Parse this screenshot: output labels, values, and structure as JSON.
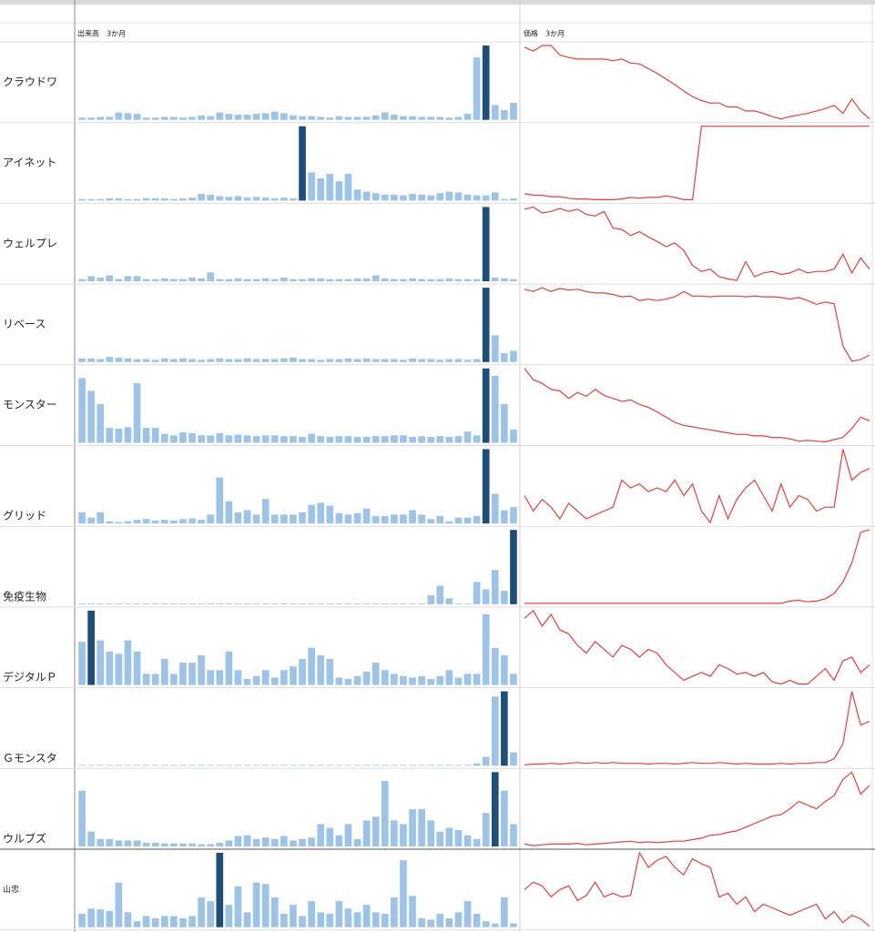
{
  "headers": {
    "volume": "出来高　3か月",
    "price": "価格　3か月"
  },
  "bar_color": "#9dc3e6",
  "highlight_color": "#1f4e79",
  "line_color": "#f23c3c",
  "rows": [
    {
      "name": "クラウドワ",
      "highlight": 44,
      "volume": [
        3,
        3,
        4,
        4,
        10,
        9,
        8,
        3,
        3,
        4,
        4,
        3,
        4,
        6,
        5,
        10,
        8,
        7,
        7,
        8,
        9,
        11,
        9,
        6,
        5,
        5,
        4,
        3,
        5,
        4,
        4,
        4,
        6,
        10,
        7,
        5,
        5,
        4,
        4,
        4,
        3,
        4,
        8,
        84,
        100,
        20,
        13,
        23
      ],
      "price": [
        95,
        90,
        97,
        97,
        85,
        82,
        80,
        80,
        80,
        80,
        78,
        80,
        75,
        74,
        68,
        62,
        55,
        48,
        40,
        33,
        28,
        25,
        25,
        20,
        20,
        15,
        15,
        12,
        8,
        5,
        8,
        10,
        12,
        15,
        18,
        22,
        12,
        30,
        15,
        5
      ]
    },
    {
      "name": "アイネット",
      "highlight": 24,
      "volume": [
        2,
        2,
        2,
        3,
        3,
        2,
        2,
        3,
        3,
        3,
        2,
        3,
        4,
        9,
        8,
        6,
        5,
        6,
        4,
        5,
        4,
        3,
        4,
        3,
        100,
        38,
        30,
        36,
        26,
        36,
        15,
        12,
        10,
        8,
        8,
        7,
        9,
        8,
        7,
        10,
        12,
        11,
        8,
        7,
        7,
        11,
        2,
        3
      ],
      "price": [
        10,
        8,
        8,
        6,
        6,
        4,
        3,
        3,
        2,
        2,
        2,
        3,
        5,
        4,
        5,
        5,
        7,
        5,
        2,
        2,
        100,
        100,
        100,
        100,
        100,
        100,
        100,
        100,
        100,
        100,
        100,
        100,
        100,
        100,
        100,
        100,
        100,
        100,
        100,
        100
      ]
    },
    {
      "name": "ウェルプレ",
      "highlight": 44,
      "volume": [
        3,
        7,
        5,
        8,
        3,
        7,
        7,
        3,
        3,
        4,
        3,
        3,
        5,
        4,
        12,
        3,
        3,
        4,
        3,
        3,
        4,
        3,
        5,
        3,
        3,
        4,
        4,
        3,
        3,
        3,
        4,
        4,
        8,
        4,
        3,
        3,
        4,
        3,
        3,
        3,
        4,
        3,
        3,
        3,
        100,
        5,
        4,
        3
      ],
      "price": [
        95,
        98,
        90,
        92,
        96,
        92,
        95,
        88,
        86,
        92,
        70,
        68,
        60,
        65,
        58,
        52,
        45,
        50,
        40,
        20,
        12,
        15,
        5,
        2,
        0,
        25,
        5,
        10,
        12,
        8,
        10,
        15,
        10,
        12,
        12,
        15,
        35,
        10,
        30,
        15
      ]
    },
    {
      "name": "リベース",
      "highlight": 44,
      "volume": [
        5,
        5,
        4,
        7,
        6,
        5,
        4,
        4,
        3,
        5,
        4,
        5,
        4,
        3,
        4,
        5,
        4,
        4,
        5,
        4,
        4,
        4,
        5,
        6,
        4,
        4,
        3,
        4,
        4,
        5,
        4,
        5,
        4,
        4,
        4,
        3,
        5,
        4,
        4,
        3,
        4,
        4,
        3,
        4,
        100,
        36,
        12,
        15
      ],
      "price": [
        95,
        92,
        97,
        92,
        96,
        94,
        95,
        92,
        90,
        90,
        88,
        85,
        86,
        80,
        82,
        80,
        82,
        85,
        92,
        86,
        86,
        85,
        86,
        86,
        86,
        85,
        86,
        85,
        85,
        84,
        82,
        84,
        80,
        75,
        78,
        76,
        20,
        0,
        2,
        8
      ]
    },
    {
      "name": "モンスター",
      "highlight": 44,
      "volume": [
        87,
        70,
        52,
        20,
        19,
        21,
        80,
        20,
        20,
        12,
        10,
        14,
        13,
        10,
        10,
        13,
        10,
        11,
        10,
        9,
        10,
        10,
        9,
        9,
        8,
        12,
        9,
        8,
        9,
        9,
        8,
        8,
        9,
        9,
        10,
        10,
        8,
        9,
        8,
        9,
        8,
        9,
        15,
        10,
        100,
        90,
        52,
        18
      ],
      "price": [
        100,
        85,
        80,
        72,
        70,
        60,
        68,
        63,
        72,
        64,
        60,
        56,
        58,
        52,
        48,
        42,
        35,
        28,
        24,
        22,
        20,
        18,
        16,
        14,
        12,
        12,
        10,
        10,
        8,
        8,
        6,
        3,
        4,
        3,
        2,
        5,
        8,
        20,
        35,
        30
      ]
    },
    {
      "name": "グリッド",
      "highlight": 44,
      "volume": [
        15,
        8,
        15,
        3,
        2,
        3,
        5,
        6,
        4,
        5,
        4,
        6,
        7,
        5,
        12,
        62,
        30,
        15,
        18,
        12,
        33,
        12,
        12,
        12,
        15,
        25,
        28,
        24,
        14,
        12,
        14,
        20,
        10,
        10,
        12,
        12,
        18,
        12,
        6,
        10,
        3,
        8,
        8,
        10,
        100,
        40,
        18,
        22
      ],
      "price": [
        40,
        20,
        35,
        25,
        10,
        30,
        20,
        10,
        15,
        20,
        25,
        60,
        50,
        55,
        45,
        50,
        45,
        60,
        40,
        55,
        20,
        5,
        40,
        10,
        35,
        50,
        60,
        40,
        20,
        55,
        25,
        40,
        35,
        20,
        25,
        25,
        100,
        60,
        70,
        75
      ]
    },
    {
      "name": "免疫生物",
      "highlight": 47,
      "volume": [
        1,
        1,
        1,
        1,
        1,
        1,
        1,
        1,
        1,
        1,
        1,
        1,
        1,
        1,
        1,
        1,
        1,
        1,
        1,
        1,
        1,
        1,
        1,
        1,
        1,
        1,
        1,
        1,
        1,
        1,
        1,
        1,
        1,
        1,
        1,
        1,
        1,
        1,
        12,
        25,
        8,
        1,
        1,
        30,
        20,
        46,
        18,
        100
      ],
      "price": [
        2,
        2,
        2,
        2,
        2,
        2,
        2,
        2,
        2,
        2,
        2,
        2,
        2,
        2,
        2,
        2,
        2,
        2,
        2,
        2,
        2,
        2,
        2,
        2,
        2,
        2,
        2,
        2,
        2,
        2,
        5,
        6,
        4,
        5,
        8,
        15,
        30,
        55,
        95,
        98
      ]
    },
    {
      "name": "デジタルＰ",
      "highlight": 1,
      "volume": [
        58,
        100,
        60,
        45,
        42,
        60,
        45,
        15,
        15,
        35,
        15,
        30,
        30,
        40,
        20,
        20,
        45,
        20,
        8,
        12,
        20,
        10,
        20,
        25,
        35,
        50,
        40,
        35,
        10,
        8,
        12,
        18,
        30,
        20,
        15,
        12,
        10,
        12,
        8,
        12,
        20,
        10,
        15,
        15,
        95,
        50,
        40,
        15
      ],
      "price": [
        90,
        100,
        80,
        95,
        75,
        70,
        55,
        45,
        60,
        50,
        40,
        55,
        50,
        40,
        50,
        45,
        30,
        20,
        10,
        15,
        20,
        15,
        30,
        25,
        18,
        20,
        15,
        20,
        8,
        5,
        10,
        5,
        5,
        15,
        25,
        10,
        35,
        40,
        20,
        30
      ]
    },
    {
      "name": "Ｇモンスタ",
      "highlight": 46,
      "volume": [
        1,
        1,
        1,
        1,
        1,
        1,
        1,
        1,
        1,
        1,
        1,
        1,
        1,
        1,
        1,
        1,
        1,
        1,
        1,
        1,
        1,
        1,
        1,
        1,
        1,
        1,
        1,
        1,
        1,
        1,
        1,
        1,
        1,
        1,
        1,
        1,
        1,
        1,
        1,
        1,
        1,
        1,
        1,
        3,
        12,
        93,
        100,
        18
      ],
      "price": [
        2,
        3,
        3,
        4,
        3,
        4,
        5,
        4,
        5,
        4,
        5,
        4,
        4,
        4,
        3,
        4,
        4,
        3,
        4,
        5,
        4,
        4,
        5,
        4,
        3,
        4,
        3,
        3,
        3,
        4,
        3,
        4,
        4,
        5,
        5,
        10,
        30,
        100,
        55,
        60
      ]
    },
    {
      "name": "ウルブズ",
      "highlight": 45,
      "volume": [
        75,
        20,
        10,
        10,
        8,
        8,
        8,
        5,
        5,
        4,
        4,
        4,
        4,
        3,
        3,
        5,
        8,
        14,
        15,
        10,
        12,
        10,
        14,
        8,
        10,
        12,
        30,
        25,
        15,
        30,
        10,
        35,
        40,
        88,
        35,
        30,
        50,
        50,
        35,
        20,
        25,
        22,
        15,
        10,
        45,
        100,
        75,
        30
      ],
      "price": [
        2,
        0,
        1,
        2,
        2,
        2,
        3,
        1,
        2,
        3,
        4,
        5,
        6,
        4,
        5,
        4,
        5,
        6,
        6,
        8,
        10,
        14,
        15,
        18,
        20,
        25,
        30,
        35,
        40,
        42,
        50,
        60,
        55,
        50,
        60,
        68,
        90,
        100,
        70,
        82
      ]
    },
    {
      "name": "山忠",
      "highlight": 15,
      "volume": [
        18,
        25,
        24,
        22,
        60,
        20,
        8,
        15,
        12,
        15,
        15,
        12,
        15,
        40,
        35,
        100,
        30,
        55,
        20,
        60,
        58,
        40,
        18,
        30,
        15,
        35,
        20,
        18,
        35,
        25,
        20,
        30,
        20,
        18,
        40,
        90,
        42,
        12,
        10,
        18,
        12,
        20,
        35,
        18,
        8,
        5,
        40,
        5
      ],
      "price": [
        50,
        60,
        55,
        40,
        50,
        55,
        35,
        42,
        60,
        40,
        45,
        40,
        42,
        100,
        80,
        90,
        95,
        80,
        70,
        92,
        85,
        80,
        40,
        45,
        30,
        40,
        20,
        30,
        25,
        20,
        15,
        20,
        25,
        30,
        10,
        20,
        5,
        15,
        10,
        0
      ]
    }
  ]
}
